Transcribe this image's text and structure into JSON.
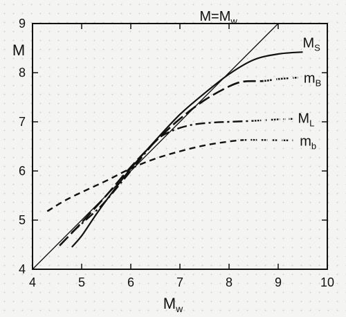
{
  "chart_data": {
    "type": "line",
    "xlabel": "M",
    "xlabel_sub": "w",
    "ylabel": "M",
    "xlim": [
      4,
      10
    ],
    "ylim": [
      4,
      9
    ],
    "xticks": [
      "4",
      "5",
      "6",
      "7",
      "8",
      "9",
      "10"
    ],
    "yticks": [
      "4",
      "5",
      "6",
      "7",
      "8",
      "9"
    ],
    "grid": false,
    "series": [
      {
        "name": "M=Mw",
        "label_main": "M=M",
        "label_sub": "w",
        "style": "solid",
        "points": [
          [
            4.0,
            4.0
          ],
          [
            9.0,
            9.0
          ]
        ]
      },
      {
        "name": "Ms",
        "label_main": "M",
        "label_sub": "S",
        "style": "solid",
        "points": [
          [
            4.8,
            4.45
          ],
          [
            5.0,
            4.68
          ],
          [
            5.25,
            5.05
          ],
          [
            5.5,
            5.4
          ],
          [
            6.0,
            6.05
          ],
          [
            6.5,
            6.62
          ],
          [
            7.0,
            7.15
          ],
          [
            7.5,
            7.58
          ],
          [
            8.0,
            7.97
          ],
          [
            8.5,
            8.26
          ],
          [
            9.0,
            8.38
          ],
          [
            9.5,
            8.42
          ]
        ]
      },
      {
        "name": "mB",
        "label_main": "m",
        "label_sub": "B",
        "style": "longdash",
        "points": [
          [
            4.55,
            4.48
          ],
          [
            5.0,
            4.95
          ],
          [
            5.5,
            5.5
          ],
          [
            6.0,
            6.08
          ],
          [
            6.5,
            6.6
          ],
          [
            7.0,
            7.06
          ],
          [
            7.5,
            7.44
          ],
          [
            8.0,
            7.72
          ],
          [
            8.3,
            7.82
          ],
          [
            8.7,
            7.83
          ],
          [
            9.0,
            7.87
          ],
          [
            9.4,
            7.9
          ]
        ]
      },
      {
        "name": "ML",
        "label_main": "M",
        "label_sub": "L",
        "style": "dashdot",
        "points": [
          [
            4.8,
            4.75
          ],
          [
            5.25,
            5.15
          ],
          [
            5.5,
            5.4
          ],
          [
            6.0,
            6.0
          ],
          [
            6.5,
            6.6
          ],
          [
            6.8,
            6.8
          ],
          [
            7.2,
            6.93
          ],
          [
            7.6,
            6.98
          ],
          [
            8.0,
            7.0
          ],
          [
            8.5,
            7.02
          ],
          [
            9.0,
            7.05
          ],
          [
            9.3,
            7.06
          ]
        ]
      },
      {
        "name": "mb",
        "label_main": "m",
        "label_sub": "b",
        "style": "dashed",
        "points": [
          [
            4.3,
            5.18
          ],
          [
            4.7,
            5.42
          ],
          [
            5.2,
            5.66
          ],
          [
            5.5,
            5.8
          ],
          [
            6.0,
            6.05
          ],
          [
            6.5,
            6.25
          ],
          [
            7.0,
            6.4
          ],
          [
            7.5,
            6.52
          ],
          [
            8.0,
            6.6
          ],
          [
            8.3,
            6.63
          ],
          [
            8.7,
            6.63
          ],
          [
            9.3,
            6.62
          ]
        ]
      }
    ]
  }
}
